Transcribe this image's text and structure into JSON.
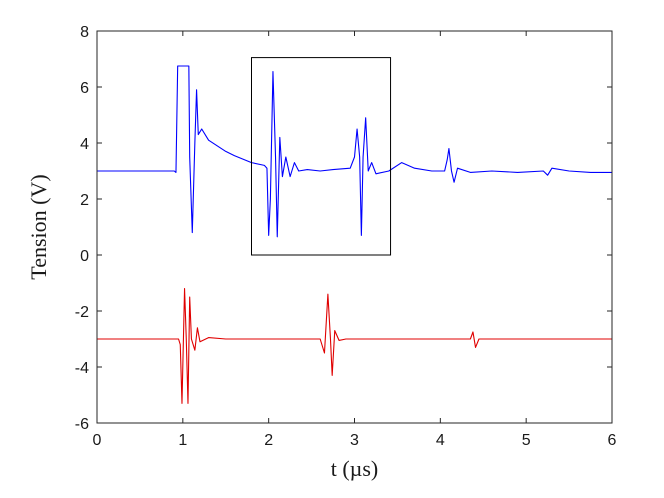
{
  "chart_data": {
    "type": "line",
    "xlabel": "t (µs)",
    "ylabel": "Tension (V)",
    "xlim": [
      0,
      6
    ],
    "ylim": [
      -6,
      8
    ],
    "xticks": [
      0,
      1,
      2,
      3,
      4,
      5,
      6
    ],
    "yticks": [
      -6,
      -4,
      -2,
      0,
      2,
      4,
      6,
      8
    ],
    "grid": false,
    "series": [
      {
        "color": "#0000ff",
        "points": [
          [
            0.0,
            3.0
          ],
          [
            0.9,
            3.0
          ],
          [
            0.92,
            2.95
          ],
          [
            0.94,
            6.75
          ],
          [
            1.07,
            6.75
          ],
          [
            1.08,
            3.5
          ],
          [
            1.11,
            0.8
          ],
          [
            1.14,
            4.0
          ],
          [
            1.16,
            5.9
          ],
          [
            1.18,
            4.3
          ],
          [
            1.22,
            4.5
          ],
          [
            1.3,
            4.1
          ],
          [
            1.4,
            3.9
          ],
          [
            1.5,
            3.7
          ],
          [
            1.6,
            3.55
          ],
          [
            1.8,
            3.3
          ],
          [
            1.95,
            3.2
          ],
          [
            1.98,
            3.1
          ],
          [
            2.0,
            0.7
          ],
          [
            2.02,
            2.0
          ],
          [
            2.05,
            6.55
          ],
          [
            2.08,
            3.5
          ],
          [
            2.1,
            0.65
          ],
          [
            2.13,
            4.2
          ],
          [
            2.16,
            2.8
          ],
          [
            2.2,
            3.5
          ],
          [
            2.25,
            2.8
          ],
          [
            2.3,
            3.3
          ],
          [
            2.35,
            3.0
          ],
          [
            2.45,
            3.05
          ],
          [
            2.6,
            3.0
          ],
          [
            2.75,
            3.05
          ],
          [
            2.95,
            3.1
          ],
          [
            3.0,
            3.5
          ],
          [
            3.03,
            4.5
          ],
          [
            3.06,
            3.5
          ],
          [
            3.08,
            0.7
          ],
          [
            3.1,
            3.5
          ],
          [
            3.13,
            4.9
          ],
          [
            3.16,
            3.0
          ],
          [
            3.2,
            3.3
          ],
          [
            3.25,
            2.9
          ],
          [
            3.4,
            3.0
          ],
          [
            3.55,
            3.3
          ],
          [
            3.7,
            3.1
          ],
          [
            3.9,
            3.0
          ],
          [
            4.05,
            3.0
          ],
          [
            4.08,
            3.4
          ],
          [
            4.1,
            3.8
          ],
          [
            4.13,
            3.0
          ],
          [
            4.16,
            2.6
          ],
          [
            4.2,
            3.1
          ],
          [
            4.35,
            2.95
          ],
          [
            4.6,
            3.0
          ],
          [
            4.9,
            2.95
          ],
          [
            5.2,
            3.0
          ],
          [
            5.25,
            2.85
          ],
          [
            5.3,
            3.1
          ],
          [
            5.5,
            3.0
          ],
          [
            5.75,
            2.95
          ],
          [
            6.0,
            2.95
          ]
        ]
      },
      {
        "color": "#e00000",
        "points": [
          [
            0.0,
            -3.0
          ],
          [
            0.95,
            -3.0
          ],
          [
            0.97,
            -3.2
          ],
          [
            0.99,
            -5.3
          ],
          [
            1.02,
            -1.2
          ],
          [
            1.04,
            -3.0
          ],
          [
            1.06,
            -5.3
          ],
          [
            1.08,
            -1.5
          ],
          [
            1.1,
            -3.0
          ],
          [
            1.14,
            -3.4
          ],
          [
            1.17,
            -2.6
          ],
          [
            1.2,
            -3.1
          ],
          [
            1.3,
            -2.95
          ],
          [
            1.5,
            -3.0
          ],
          [
            2.6,
            -3.0
          ],
          [
            2.65,
            -3.5
          ],
          [
            2.69,
            -1.4
          ],
          [
            2.72,
            -3.0
          ],
          [
            2.74,
            -4.3
          ],
          [
            2.77,
            -2.7
          ],
          [
            2.82,
            -3.05
          ],
          [
            2.9,
            -3.0
          ],
          [
            4.35,
            -3.0
          ],
          [
            4.38,
            -2.75
          ],
          [
            4.41,
            -3.3
          ],
          [
            4.45,
            -3.0
          ],
          [
            5.0,
            -3.0
          ],
          [
            5.3,
            -3.0
          ],
          [
            6.0,
            -3.0
          ]
        ]
      }
    ],
    "annotations": [
      {
        "type": "rectangle",
        "x": [
          1.8,
          3.42
        ],
        "y": [
          0.0,
          7.05
        ],
        "color": "#000000"
      }
    ]
  }
}
